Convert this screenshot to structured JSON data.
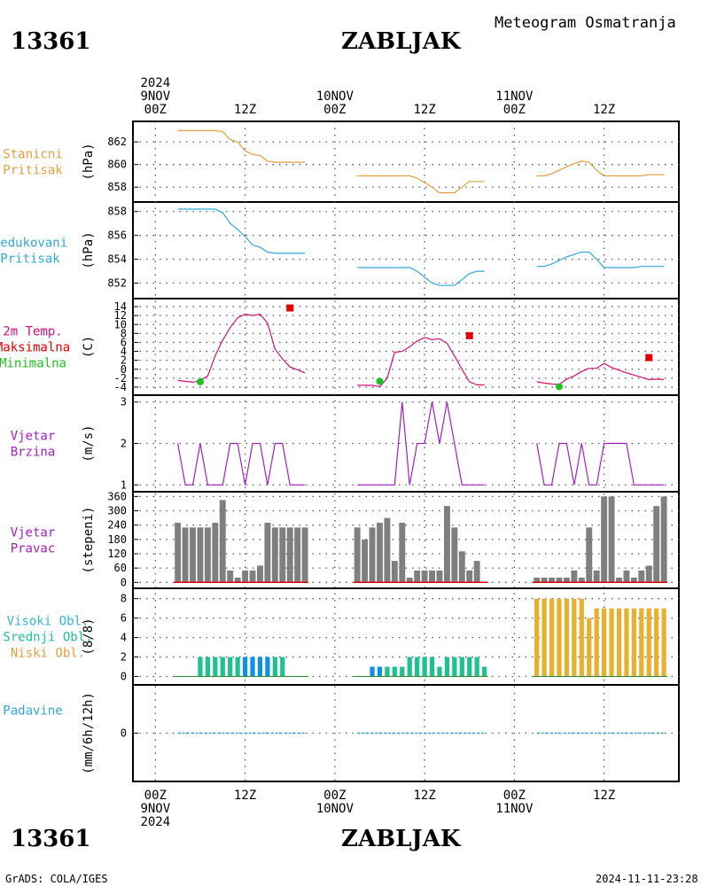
{
  "header": {
    "station_id": "13361",
    "station_name": "ZABLJAK",
    "product_title": "Meteogram Osmatranja"
  },
  "footer": {
    "left": "GrADS: COLA/IGES",
    "right": "2024-11-11-23:28"
  },
  "time_axis": {
    "labels": [
      {
        "t": 0,
        "lines": [
          "2024",
          "9NOV",
          "00Z"
        ],
        "bottom": [
          "00Z",
          "9NOV",
          "2024"
        ]
      },
      {
        "t": 12,
        "lines": [
          "12Z"
        ],
        "bottom": [
          "12Z"
        ]
      },
      {
        "t": 24,
        "lines": [
          "10NOV",
          "00Z"
        ],
        "bottom": [
          "00Z",
          "10NOV"
        ]
      },
      {
        "t": 36,
        "lines": [
          "12Z"
        ],
        "bottom": [
          "12Z"
        ]
      },
      {
        "t": 48,
        "lines": [
          "11NOV",
          "00Z"
        ],
        "bottom": [
          "00Z",
          "11NOV"
        ]
      },
      {
        "t": 60,
        "lines": [
          "12Z"
        ],
        "bottom": [
          "12Z"
        ]
      }
    ],
    "range_hours": [
      -3,
      70
    ]
  },
  "panels": [
    {
      "key": "pressure_station",
      "labels": [
        "Stanicni",
        "Pritisak"
      ],
      "label_color": "#e0a040",
      "unit": "(hPa)",
      "ticks": [
        "858",
        "860",
        "862"
      ]
    },
    {
      "key": "pressure_reduced",
      "labels": [
        "Redukovani",
        "Pritisak"
      ],
      "label_color": "#30a8d8",
      "unit": "(hPa)",
      "ticks": [
        "852",
        "854",
        "856",
        "858"
      ]
    },
    {
      "key": "temperature",
      "labels": [
        "2m Temp.",
        "Maksimalna",
        "Minimalna"
      ],
      "label_colors": [
        "#d0107a",
        "#e00000",
        "#20c020"
      ],
      "unit": "(C)",
      "ticks": [
        "-4",
        "-2",
        "0",
        "2",
        "4",
        "6",
        "8",
        "10",
        "12",
        "14"
      ]
    },
    {
      "key": "wind_speed",
      "labels": [
        "Vjetar",
        "Brzina"
      ],
      "label_color": "#a020c0",
      "unit": "(m/s)",
      "ticks": [
        "1",
        "2",
        "3"
      ]
    },
    {
      "key": "wind_dir",
      "labels": [
        "Vjetar",
        "Pravac"
      ],
      "label_color": "#a020c0",
      "unit": "(stepeni)",
      "ticks": [
        "0",
        "60",
        "120",
        "180",
        "240",
        "300",
        "360"
      ]
    },
    {
      "key": "clouds",
      "labels": [
        "Visoki Obl.",
        "Srednji Obl.",
        "Niski Obl."
      ],
      "label_colors": [
        "#30b8d0",
        "#20c090",
        "#e0a040"
      ],
      "unit": "(8/8)",
      "ticks": [
        "0",
        "2",
        "4",
        "6",
        "8"
      ]
    },
    {
      "key": "precip",
      "labels": [
        "Padavine"
      ],
      "label_color": "#30a8d8",
      "unit": "(mm/6h/12h)",
      "ticks": [
        "0"
      ]
    }
  ],
  "colors": {
    "pressure_station": "#e0a040",
    "pressure_reduced": "#30a8d8",
    "temperature": "#d0107a",
    "tmax": "#e00000",
    "tmin": "#20c020",
    "wind_speed": "#a020c0",
    "wind_dir_bar": "#7f7f7f",
    "wind_dir_base": "#e00000",
    "cloud_high": "#30b8d0",
    "cloud_mid": "#1090e0",
    "cloud_mid2": "#20c090",
    "cloud_low": "#e8b030",
    "precip": "#30a8d8"
  },
  "chart_data": {
    "type": "line",
    "x_unit": "hours since 2024-11-09 00Z",
    "segments": [
      [
        3,
        20
      ],
      [
        27,
        44
      ],
      [
        51,
        68
      ]
    ],
    "pressure_station": {
      "ylim": [
        857,
        863.5
      ],
      "x": [
        3,
        4,
        5,
        6,
        7,
        8,
        9,
        10,
        11,
        12,
        13,
        14,
        15,
        16,
        17,
        18,
        19,
        20,
        27,
        28,
        29,
        30,
        31,
        32,
        33,
        34,
        35,
        36,
        37,
        38,
        39,
        40,
        41,
        42,
        43,
        44,
        51,
        52,
        53,
        54,
        55,
        56,
        57,
        58,
        59,
        60,
        61,
        62,
        63,
        64,
        65,
        66,
        67,
        68
      ],
      "y": [
        863,
        863,
        863,
        863,
        863,
        863,
        862.9,
        862.2,
        862,
        861.2,
        860.9,
        860.8,
        860.3,
        860.2,
        860.2,
        860.2,
        860.2,
        860.2,
        859,
        859,
        859,
        859,
        859,
        859,
        859,
        859,
        858.8,
        858.4,
        858,
        857.5,
        857.5,
        857.5,
        858,
        858.5,
        858.5,
        858.5,
        859,
        859,
        859.2,
        859.5,
        859.8,
        860.1,
        860.3,
        860.2,
        859.5,
        859,
        859,
        859,
        859,
        859,
        859,
        859.1,
        859.1,
        859.1
      ]
    },
    "pressure_reduced": {
      "ylim": [
        851,
        858.5
      ],
      "x": [
        3,
        4,
        5,
        6,
        7,
        8,
        9,
        10,
        11,
        12,
        13,
        14,
        15,
        16,
        17,
        18,
        19,
        20,
        27,
        28,
        29,
        30,
        31,
        32,
        33,
        34,
        35,
        36,
        37,
        38,
        39,
        40,
        41,
        42,
        43,
        44,
        51,
        52,
        53,
        54,
        55,
        56,
        57,
        58,
        59,
        60,
        61,
        62,
        63,
        64,
        65,
        66,
        67,
        68
      ],
      "y": [
        858.2,
        858.2,
        858.2,
        858.2,
        858.2,
        858.2,
        857.9,
        857,
        856.5,
        855.9,
        855.2,
        855,
        854.6,
        854.5,
        854.5,
        854.5,
        854.5,
        854.5,
        853.3,
        853.3,
        853.3,
        853.3,
        853.3,
        853.3,
        853.3,
        853.3,
        853,
        852.5,
        852,
        851.8,
        851.8,
        851.8,
        852.3,
        852.8,
        853,
        853,
        853.4,
        853.4,
        853.6,
        853.9,
        854.2,
        854.4,
        854.6,
        854.6,
        854,
        853.3,
        853.3,
        853.3,
        853.3,
        853.3,
        853.4,
        853.4,
        853.4,
        853.4
      ]
    },
    "temperature": {
      "ylim": [
        -5,
        15
      ],
      "x": [
        3,
        4,
        5,
        6,
        7,
        8,
        9,
        10,
        11,
        12,
        13,
        14,
        15,
        16,
        17,
        18,
        19,
        20,
        27,
        28,
        29,
        30,
        31,
        32,
        33,
        34,
        35,
        36,
        37,
        38,
        39,
        40,
        41,
        42,
        43,
        44,
        51,
        52,
        53,
        54,
        55,
        56,
        57,
        58,
        59,
        60,
        61,
        62,
        63,
        64,
        65,
        66,
        67,
        68
      ],
      "y": [
        -2.5,
        -2.7,
        -2.9,
        -2.5,
        -1.5,
        3,
        6.5,
        9.3,
        11.5,
        12.3,
        12,
        12.3,
        10.3,
        4.5,
        2.3,
        0.5,
        -0.1,
        -0.8,
        -3.6,
        -3.6,
        -3.6,
        -3.9,
        -2,
        3.8,
        4,
        5,
        6.3,
        7.1,
        6.6,
        6.8,
        5.8,
        3,
        0,
        -2.8,
        -3.5,
        -3.5,
        -2.8,
        -3.1,
        -3.3,
        -3.4,
        -2.2,
        -1.5,
        -0.5,
        0.2,
        0.2,
        1.3,
        0.4,
        -0.2,
        -0.8,
        -1.3,
        -1.8,
        -2.3,
        -2.2,
        -2.3
      ],
      "max": [
        {
          "x": 18,
          "y": 13.7
        },
        {
          "x": 42,
          "y": 7.5
        },
        {
          "x": 66,
          "y": 2.6
        }
      ],
      "min": [
        {
          "x": 6,
          "y": -2.8
        },
        {
          "x": 30,
          "y": -2.7
        },
        {
          "x": 54,
          "y": -3.9
        }
      ]
    },
    "wind_speed": {
      "ylim": [
        0.92,
        3.08
      ],
      "x": [
        3,
        4,
        5,
        6,
        7,
        8,
        9,
        10,
        11,
        12,
        13,
        14,
        15,
        16,
        17,
        18,
        19,
        20,
        27,
        28,
        29,
        30,
        31,
        32,
        33,
        34,
        35,
        36,
        37,
        38,
        39,
        40,
        41,
        42,
        43,
        44,
        51,
        52,
        53,
        54,
        55,
        56,
        57,
        58,
        59,
        60,
        61,
        62,
        63,
        64,
        65,
        66,
        67,
        68
      ],
      "y": [
        2,
        1,
        1,
        2,
        1,
        1,
        1,
        2,
        2,
        1,
        2,
        2,
        1,
        2,
        2,
        1,
        1,
        1,
        1,
        1,
        1,
        1,
        1,
        1,
        3,
        1,
        2,
        2,
        3,
        2,
        3,
        2,
        1,
        1,
        1,
        1,
        2,
        1,
        1,
        2,
        2,
        1,
        2,
        1,
        1,
        2,
        2,
        2,
        2,
        1,
        1,
        1,
        1,
        1
      ]
    },
    "wind_dir": {
      "ylim": [
        -10,
        365
      ],
      "x": [
        3,
        4,
        5,
        6,
        7,
        8,
        9,
        10,
        11,
        12,
        13,
        14,
        15,
        16,
        17,
        18,
        19,
        20,
        27,
        28,
        29,
        30,
        31,
        32,
        33,
        34,
        35,
        36,
        37,
        38,
        39,
        40,
        41,
        42,
        43,
        44,
        51,
        52,
        53,
        54,
        55,
        56,
        57,
        58,
        59,
        60,
        61,
        62,
        63,
        64,
        65,
        66,
        67,
        68
      ],
      "y": [
        250,
        230,
        230,
        230,
        230,
        250,
        345,
        50,
        20,
        50,
        50,
        70,
        250,
        230,
        230,
        230,
        230,
        230,
        230,
        180,
        230,
        250,
        270,
        90,
        250,
        20,
        50,
        50,
        50,
        50,
        320,
        230,
        130,
        50,
        90,
        0,
        20,
        20,
        20,
        20,
        20,
        50,
        20,
        230,
        50,
        360,
        360,
        20,
        50,
        20,
        50,
        70,
        320,
        360
      ]
    },
    "clouds": {
      "ylim": [
        -0.5,
        8.7
      ],
      "x": [
        3,
        4,
        5,
        6,
        7,
        8,
        9,
        10,
        11,
        12,
        13,
        14,
        15,
        16,
        17,
        18,
        19,
        20,
        27,
        28,
        29,
        30,
        31,
        32,
        33,
        34,
        35,
        36,
        37,
        38,
        39,
        40,
        41,
        42,
        43,
        44,
        51,
        52,
        53,
        54,
        55,
        56,
        57,
        58,
        59,
        60,
        61,
        62,
        63,
        64,
        65,
        66,
        67,
        68
      ],
      "mid": [
        0,
        0,
        0,
        2,
        2,
        2,
        2,
        2,
        2,
        2,
        2,
        2,
        2,
        2,
        2,
        0,
        0,
        0,
        0,
        0,
        1,
        1,
        1,
        1,
        1,
        2,
        2,
        2,
        2,
        1,
        2,
        2,
        2,
        2,
        2,
        1,
        0,
        0,
        0,
        0,
        0,
        0,
        0,
        0,
        0,
        0,
        0,
        0,
        0,
        0,
        0,
        0,
        0,
        0
      ],
      "low": [
        0,
        0,
        0,
        0,
        0,
        0,
        0,
        0,
        0,
        0,
        0,
        0,
        0,
        0,
        0,
        0,
        0,
        0,
        0,
        0,
        0,
        0,
        0,
        0,
        0,
        0,
        0,
        0,
        0,
        0,
        0,
        0,
        0,
        0,
        0,
        0,
        8,
        8,
        8,
        8,
        8,
        8,
        8,
        6,
        7,
        7,
        7,
        7,
        7,
        7,
        7,
        7,
        7,
        7
      ]
    },
    "precip": {
      "ylim": [
        -5,
        5
      ],
      "x": [
        3,
        20,
        27,
        44,
        51,
        68
      ],
      "y": [
        0,
        0,
        0,
        0,
        0,
        0
      ]
    }
  }
}
